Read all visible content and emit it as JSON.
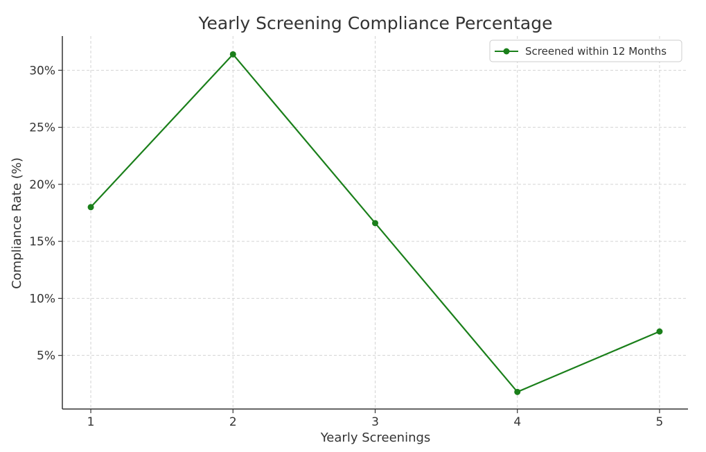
{
  "chart_data": {
    "type": "line",
    "title": "Yearly Screening Compliance Percentage",
    "xlabel": "Yearly Screenings",
    "ylabel": "Compliance Rate (%)",
    "x": [
      1,
      2,
      3,
      4,
      5
    ],
    "x_tick_labels": [
      "1",
      "2",
      "3",
      "4",
      "5"
    ],
    "y_ticks": [
      5,
      10,
      15,
      20,
      25,
      30
    ],
    "y_tick_labels": [
      "5%",
      "10%",
      "15%",
      "20%",
      "25%",
      "30%"
    ],
    "xlim": [
      0.8,
      5.2
    ],
    "ylim": [
      0.3,
      33.0
    ],
    "grid": true,
    "legend_position": "top-right",
    "series": [
      {
        "name": "Screened within 12 Months",
        "color": "#1a7f1a",
        "marker": "circle",
        "values": [
          18.0,
          31.4,
          16.6,
          1.8,
          7.1
        ]
      }
    ]
  }
}
